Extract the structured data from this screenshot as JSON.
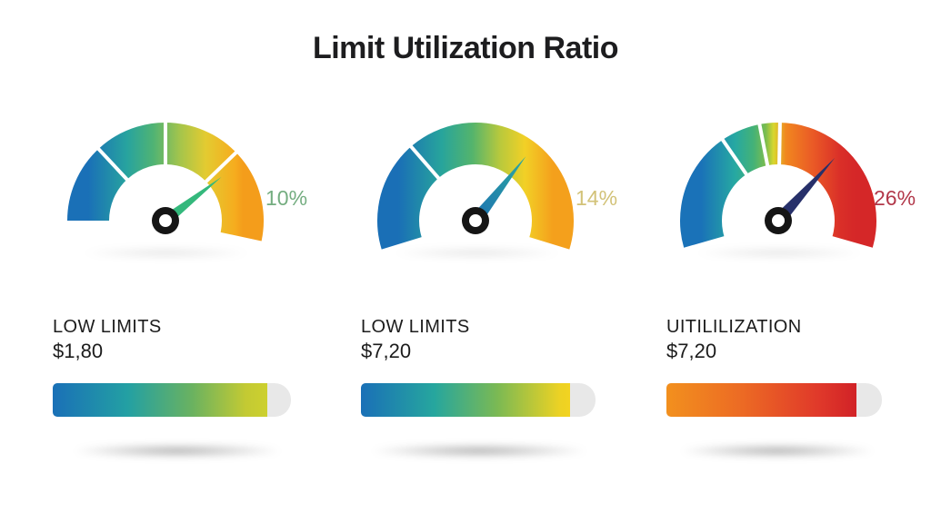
{
  "title": "Limit Utilization Ratio",
  "background_color": "#ffffff",
  "chart_data": [
    {
      "type": "gauge",
      "value_percent": 10,
      "value_label": "10%",
      "value_label_color": "#74ad80",
      "label": "LOW LIMITS",
      "amount": "$1,80",
      "needle": {
        "color": "#34b87c",
        "angle_deg": 38,
        "length": 78,
        "half_width": 6
      },
      "hub": {
        "ring_color": "#151515",
        "hole_color": "#ffffff"
      },
      "arc": {
        "start_deg": 180,
        "end_deg": -12,
        "ticks_deg": [
          133,
          90,
          44
        ],
        "gradient": [
          [
            "#1a70b7",
            0
          ],
          [
            "#27a39f",
            25
          ],
          [
            "#4fb374",
            42
          ],
          [
            "#a7c54a",
            60
          ],
          [
            "#e3cb31",
            76
          ],
          [
            "#f6ac1e",
            95
          ],
          [
            "#f49d1b",
            100
          ]
        ]
      },
      "bar": {
        "fill_percent": 90,
        "gradient": [
          [
            "#1a70b7",
            0
          ],
          [
            "#23a0a3",
            35
          ],
          [
            "#6ab260",
            65
          ],
          [
            "#c3ca33",
            90
          ],
          [
            "#cdd02f",
            100
          ]
        ]
      }
    },
    {
      "type": "gauge",
      "value_percent": 14,
      "value_label": "14%",
      "value_label_color": "#d2c278",
      "label": "LOW LIMITS",
      "amount": "$7,20",
      "needle": {
        "color": [
          "#1d6fb4",
          "#2aa89f"
        ],
        "angle_deg": 52,
        "length": 90,
        "half_width": 7
      },
      "hub": {
        "ring_color": "#151515",
        "hole_color": "#ffffff"
      },
      "arc": {
        "start_deg": 197,
        "end_deg": -17,
        "ticks_deg": [
          131
        ],
        "gradient": [
          [
            "#1a6fb6",
            0
          ],
          [
            "#27a49c",
            28
          ],
          [
            "#54b46c",
            48
          ],
          [
            "#b9c93c",
            66
          ],
          [
            "#f2d026",
            82
          ],
          [
            "#f4a01c",
            100
          ]
        ]
      },
      "bar": {
        "fill_percent": 89,
        "gradient": [
          [
            "#1a70b7",
            0
          ],
          [
            "#26a69e",
            35
          ],
          [
            "#7ab954",
            65
          ],
          [
            "#ecd224",
            95
          ],
          [
            "#f2d321",
            100
          ]
        ]
      }
    },
    {
      "type": "gauge",
      "value_percent": 26,
      "value_label": "26%",
      "value_label_color": "#b2384a",
      "label": "UITILILIZATION",
      "amount": "$7,20",
      "needle": {
        "color": "#27306a",
        "angle_deg": 48,
        "length": 93,
        "half_width": 7
      },
      "hub": {
        "ring_color": "#151515",
        "hole_color": "#ffffff"
      },
      "arc": {
        "start_deg": 196,
        "end_deg": -16,
        "ticks_deg": [
          124.5,
          101,
          89
        ],
        "gradient": [
          [
            "#1a72b8",
            0
          ],
          [
            "#26a8a2",
            22
          ],
          [
            "#44b277",
            34
          ],
          [
            "#7cbd4e",
            42
          ],
          [
            "#d8d72e",
            47
          ],
          [
            "#f1861f",
            55
          ],
          [
            "#ea5b26",
            72
          ],
          [
            "#da2f28",
            90
          ],
          [
            "#d52728",
            100
          ]
        ]
      },
      "bar": {
        "fill_percent": 88,
        "gradient": [
          [
            "#f2901e",
            0
          ],
          [
            "#ec6a24",
            40
          ],
          [
            "#e0392a",
            80
          ],
          [
            "#d12227",
            100
          ]
        ]
      }
    }
  ]
}
